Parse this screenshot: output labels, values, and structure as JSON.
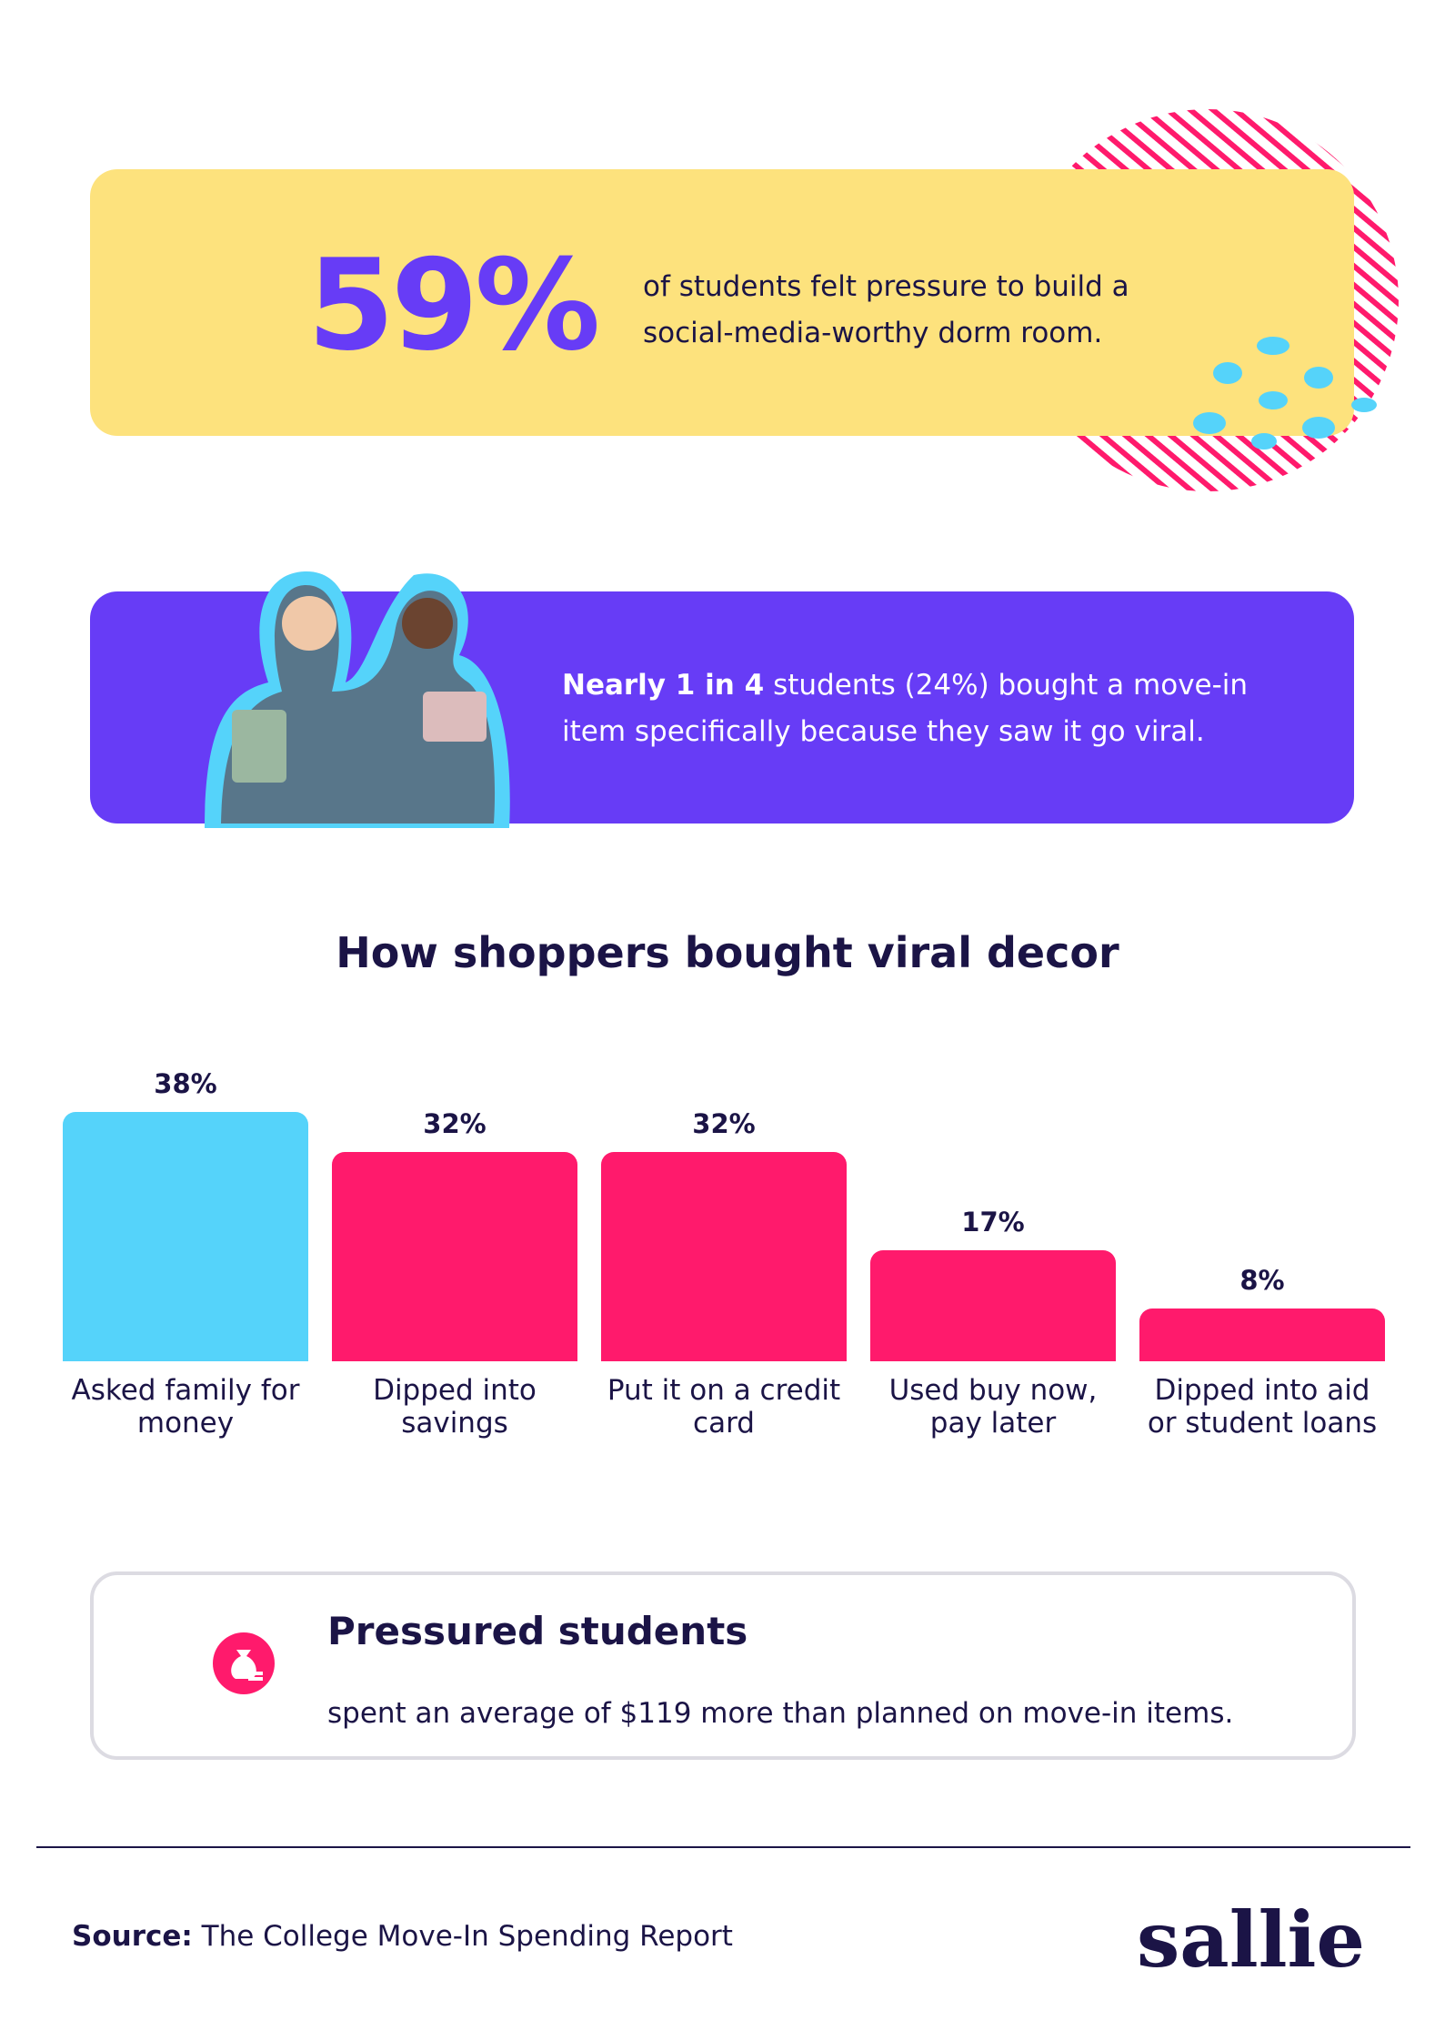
{
  "stat_card": {
    "figure": "59%",
    "text": "of students felt pressure to build a social-media-worthy dorm room."
  },
  "viral_card": {
    "bold": "Nearly 1 in 4",
    "text": "students (24%) bought a move-in item specifically because they saw it go viral."
  },
  "chart_data": {
    "type": "bar",
    "title": "How shoppers bought viral decor",
    "categories": [
      "Asked family for money",
      "Dipped into savings",
      "Put it on a credit card",
      "Used buy now, pay later",
      "Dipped into aid or student loans"
    ],
    "values": [
      38,
      32,
      32,
      17,
      8
    ],
    "value_labels": [
      "38%",
      "32%",
      "32%",
      "17%",
      "8%"
    ],
    "colors": [
      "#55d3fa",
      "#ff1a6c",
      "#ff1a6c",
      "#ff1a6c",
      "#ff1a6c"
    ]
  },
  "callout": {
    "title": "Pressured students",
    "text": "spent an average of $119 more than planned on move-in items."
  },
  "footer": {
    "source_label": "Source:",
    "source": "The College Move-In Spending Report",
    "logo": "sallie"
  }
}
